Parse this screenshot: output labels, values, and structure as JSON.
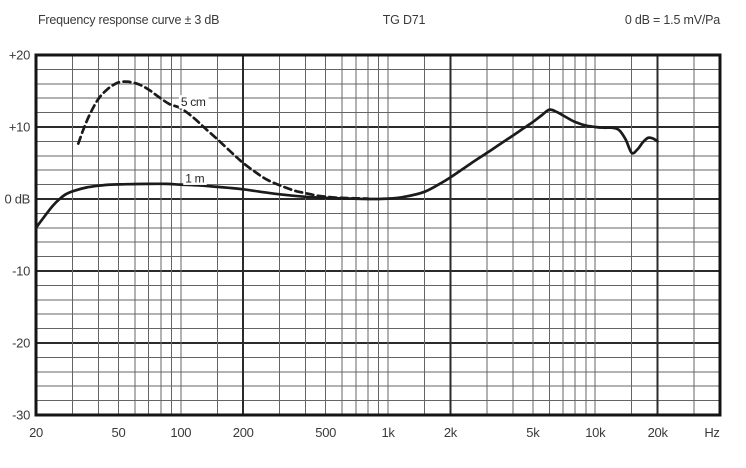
{
  "header": {
    "model": "TG D71",
    "sensitivity": "0 dB = 1.5 mV/Pa"
  },
  "chart_data": {
    "type": "line",
    "title": "Frequency response curve ± 3 dB",
    "x_scale": "log",
    "x_unit": "Hz",
    "x_min": 20,
    "x_max": 40000,
    "y_min": -30,
    "y_max": 20,
    "y_minor_step": 2,
    "y_major_step": 10,
    "grid": "on",
    "x_ticks": [
      {
        "f": 20,
        "label": "20"
      },
      {
        "f": 50,
        "label": "50"
      },
      {
        "f": 100,
        "label": "100"
      },
      {
        "f": 200,
        "label": "200"
      },
      {
        "f": 500,
        "label": "500"
      },
      {
        "f": 1000,
        "label": "1k"
      },
      {
        "f": 2000,
        "label": "2k"
      },
      {
        "f": 5000,
        "label": "5k"
      },
      {
        "f": 10000,
        "label": "10k"
      },
      {
        "f": 20000,
        "label": "20k"
      }
    ],
    "x_emphasized_gridlines": [
      200,
      2000,
      20000
    ],
    "x_gridline_multiples": [
      1,
      1.5,
      2,
      3,
      4,
      5,
      6,
      7,
      8,
      9
    ],
    "y_ticks": [
      {
        "v": 20,
        "label": "+20"
      },
      {
        "v": 10,
        "label": "+10"
      },
      {
        "v": 0,
        "label": "0 dB"
      },
      {
        "v": -10,
        "label": "-10"
      },
      {
        "v": -20,
        "label": "-20"
      },
      {
        "v": -30,
        "label": "-30"
      }
    ],
    "series": [
      {
        "name": "1 m",
        "line_style": "solid",
        "label": {
          "text": "1 m",
          "f": 105,
          "db": 2.3
        },
        "points": [
          [
            20,
            -4.0
          ],
          [
            22,
            -2.4
          ],
          [
            24,
            -1.0
          ],
          [
            26,
            0.0
          ],
          [
            28,
            0.7
          ],
          [
            31,
            1.2
          ],
          [
            35,
            1.6
          ],
          [
            40,
            1.85
          ],
          [
            46,
            2.0
          ],
          [
            55,
            2.05
          ],
          [
            70,
            2.1
          ],
          [
            85,
            2.1
          ],
          [
            100,
            2.0
          ],
          [
            120,
            1.9
          ],
          [
            140,
            1.75
          ],
          [
            170,
            1.55
          ],
          [
            200,
            1.35
          ],
          [
            250,
            0.95
          ],
          [
            300,
            0.65
          ],
          [
            400,
            0.3
          ],
          [
            500,
            0.15
          ],
          [
            650,
            0.05
          ],
          [
            800,
            0.0
          ],
          [
            1000,
            0.05
          ],
          [
            1200,
            0.3
          ],
          [
            1500,
            1.0
          ],
          [
            1800,
            2.2
          ],
          [
            2000,
            3.0
          ],
          [
            2500,
            4.9
          ],
          [
            3000,
            6.4
          ],
          [
            3500,
            7.7
          ],
          [
            4000,
            8.8
          ],
          [
            4500,
            9.8
          ],
          [
            5000,
            10.7
          ],
          [
            5500,
            11.6
          ],
          [
            6000,
            12.4
          ],
          [
            6500,
            12.1
          ],
          [
            7000,
            11.6
          ],
          [
            7500,
            11.1
          ],
          [
            8000,
            10.7
          ],
          [
            9000,
            10.2
          ],
          [
            10000,
            10.0
          ],
          [
            11000,
            9.9
          ],
          [
            12000,
            9.9
          ],
          [
            13000,
            9.6
          ],
          [
            14000,
            8.3
          ],
          [
            15000,
            6.4
          ],
          [
            16000,
            6.9
          ],
          [
            17000,
            7.9
          ],
          [
            18000,
            8.5
          ],
          [
            19000,
            8.4
          ],
          [
            20000,
            8.0
          ]
        ]
      },
      {
        "name": "5 cm",
        "line_style": "dashed",
        "label": {
          "text": "5 cm",
          "f": 100,
          "db": 12.9
        },
        "points": [
          [
            32,
            7.7
          ],
          [
            33.5,
            9.3
          ],
          [
            35,
            10.7
          ],
          [
            37,
            12.2
          ],
          [
            39,
            13.4
          ],
          [
            41,
            14.3
          ],
          [
            44,
            15.2
          ],
          [
            47,
            15.8
          ],
          [
            50,
            16.2
          ],
          [
            54,
            16.3
          ],
          [
            58,
            16.2
          ],
          [
            63,
            15.9
          ],
          [
            70,
            15.2
          ],
          [
            78,
            14.2
          ],
          [
            88,
            13.2
          ],
          [
            100,
            12.6
          ],
          [
            115,
            11.3
          ],
          [
            130,
            9.9
          ],
          [
            150,
            8.3
          ],
          [
            175,
            6.5
          ],
          [
            200,
            5.0
          ],
          [
            230,
            3.7
          ],
          [
            260,
            2.7
          ],
          [
            300,
            1.9
          ],
          [
            350,
            1.2
          ],
          [
            400,
            0.8
          ],
          [
            460,
            0.45
          ],
          [
            530,
            0.25
          ],
          [
            600,
            0.15
          ],
          [
            700,
            0.1
          ],
          [
            800,
            0.05
          ]
        ]
      }
    ],
    "colors": {
      "background": "#ffffff",
      "curve": "#1b1b1b",
      "grid_minor": "#646464",
      "grid_major": "#2b2b2b",
      "border": "#141414",
      "text": "#3a3a3a"
    }
  }
}
